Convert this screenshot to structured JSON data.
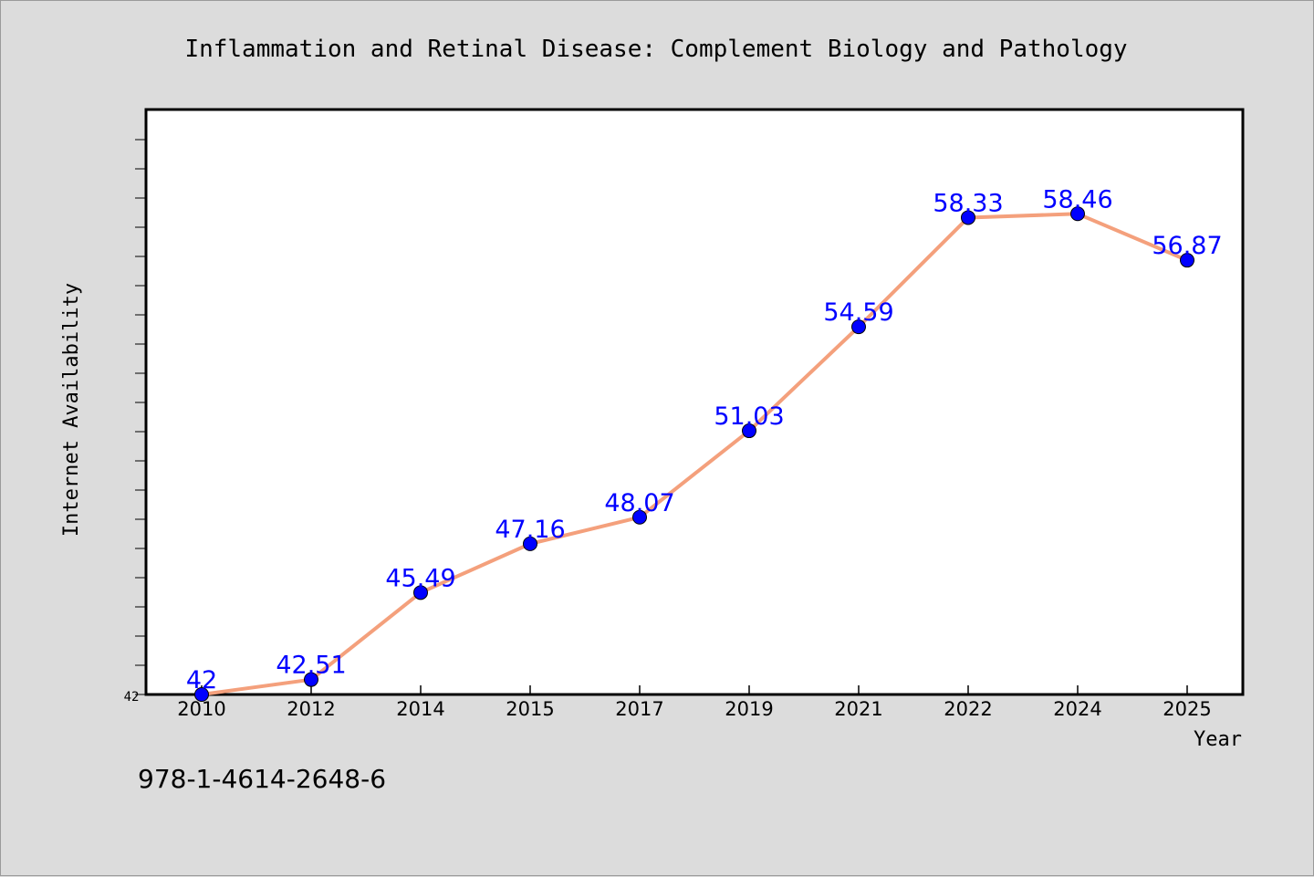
{
  "chart_data": {
    "type": "line",
    "title": "Inflammation and Retinal Disease: Complement Biology and Pathology",
    "xlabel": "Year",
    "ylabel": "Internet Availability",
    "categories": [
      "2010",
      "2012",
      "2014",
      "2015",
      "2017",
      "2019",
      "2021",
      "2022",
      "2024",
      "2025"
    ],
    "series": [
      {
        "values": [
          42,
          42.51,
          45.49,
          47.16,
          48.07,
          51.03,
          54.59,
          58.33,
          58.46,
          56.87
        ],
        "data_labels": [
          "42",
          "42.51",
          "45.49",
          "47.16",
          "48.07",
          "51.03",
          "54.59",
          "58.33",
          "58.46",
          "56.87"
        ]
      }
    ],
    "y_tick_label": "42",
    "ylim": [
      42,
      61.9
    ],
    "grid": false,
    "legend": "none"
  },
  "footer_code": "978-1-4614-2648-6",
  "colors": {
    "background": "#dcdcdc",
    "plot_area": "#ffffff",
    "line": "#f4a07c",
    "marker": "#0000ff",
    "data_label": "#0000ff",
    "text": "#000000"
  }
}
